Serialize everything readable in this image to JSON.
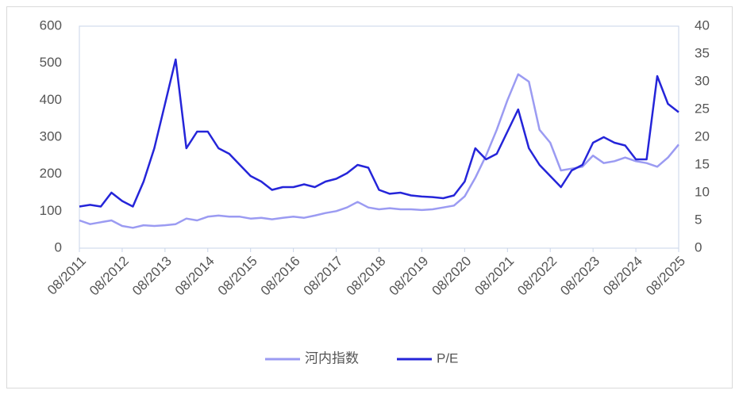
{
  "chart_data": {
    "type": "line",
    "x": [
      "08/2011",
      "11/2011",
      "02/2012",
      "05/2012",
      "08/2012",
      "11/2012",
      "02/2013",
      "05/2013",
      "08/2013",
      "11/2013",
      "02/2014",
      "05/2014",
      "08/2014",
      "11/2014",
      "02/2015",
      "05/2015",
      "08/2015",
      "11/2015",
      "02/2016",
      "05/2016",
      "08/2016",
      "11/2016",
      "02/2017",
      "05/2017",
      "08/2017",
      "11/2017",
      "02/2018",
      "05/2018",
      "08/2018",
      "11/2018",
      "02/2019",
      "05/2019",
      "08/2019",
      "11/2019",
      "02/2020",
      "05/2020",
      "08/2020",
      "11/2020",
      "02/2021",
      "05/2021",
      "08/2021",
      "11/2021",
      "02/2022",
      "05/2022",
      "08/2022",
      "11/2022",
      "02/2023",
      "05/2023",
      "08/2023",
      "11/2023",
      "02/2024",
      "05/2024",
      "08/2024",
      "11/2024",
      "02/2025",
      "05/2025",
      "08/2025"
    ],
    "series": [
      {
        "name": "河内指数",
        "color": "#9b9bf2",
        "axis": "y",
        "values": [
          75,
          65,
          70,
          75,
          60,
          55,
          62,
          60,
          62,
          65,
          80,
          75,
          85,
          88,
          85,
          85,
          80,
          82,
          78,
          82,
          85,
          82,
          88,
          95,
          100,
          110,
          125,
          110,
          105,
          108,
          105,
          105,
          103,
          105,
          110,
          115,
          140,
          190,
          250,
          320,
          400,
          470,
          450,
          320,
          285,
          210,
          215,
          220,
          250,
          230,
          235,
          245,
          235,
          230,
          220,
          245,
          280
        ]
      },
      {
        "name": "P/E",
        "color": "#2525d9",
        "axis": "y2",
        "values": [
          7.5,
          7.8,
          7.5,
          10,
          8.5,
          7.5,
          12,
          18,
          26,
          34,
          18,
          21,
          21,
          18,
          17,
          15,
          13,
          12,
          10.5,
          11,
          11,
          11.5,
          11,
          12,
          12.5,
          13.5,
          15,
          14.5,
          10.5,
          9.8,
          10,
          9.5,
          9.3,
          9.2,
          9.0,
          9.5,
          12,
          18,
          16,
          17,
          21,
          25,
          18,
          15,
          13,
          11,
          14,
          15,
          19,
          20,
          19,
          18.5,
          16,
          16,
          31,
          26,
          24.5
        ]
      }
    ],
    "ylim": [
      0,
      600
    ],
    "yticks": [
      0,
      100,
      200,
      300,
      400,
      500,
      600
    ],
    "y2lim": [
      0,
      40
    ],
    "y2ticks": [
      0,
      5,
      10,
      15,
      20,
      25,
      30,
      35,
      40
    ],
    "grid": false,
    "legend": "bottom"
  }
}
